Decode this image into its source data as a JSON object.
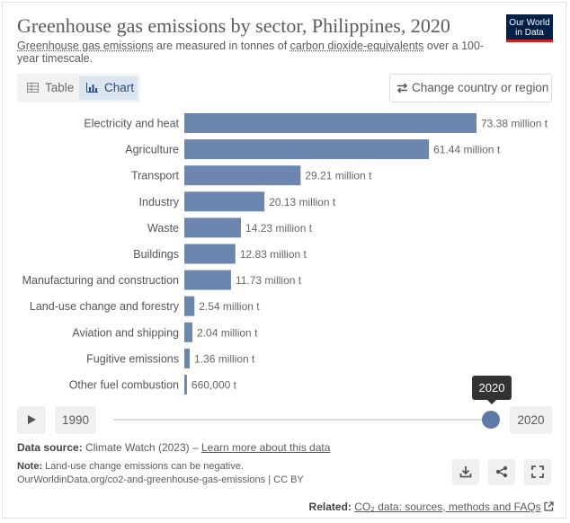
{
  "header": {
    "title": "Greenhouse gas emissions by sector, Philippines, 2020",
    "subtitle_link1": "Greenhouse gas emissions",
    "subtitle_mid": " are measured in tonnes of ",
    "subtitle_link2": "carbon dioxide-equivalents",
    "subtitle_end": " over a 100-year timescale.",
    "logo_line1": "Our World",
    "logo_line2": "in Data"
  },
  "tabs": {
    "table_label": "Table",
    "chart_label": "Chart",
    "selected": "Chart"
  },
  "change_button_label": "Change country or region",
  "colors": {
    "bar": "#6d86b0",
    "accent": "#5f79a6",
    "logo_bg": "#002147",
    "logo_stripe": "#ce261e"
  },
  "chart_data": {
    "type": "bar",
    "orientation": "horizontal",
    "unit": "million t",
    "categories": [
      "Electricity and heat",
      "Agriculture",
      "Transport",
      "Industry",
      "Waste",
      "Buildings",
      "Manufacturing and construction",
      "Land-use change and forestry",
      "Aviation and shipping",
      "Fugitive emissions",
      "Other fuel combustion"
    ],
    "values": [
      73.38,
      61.44,
      29.21,
      20.13,
      14.23,
      12.83,
      11.73,
      2.54,
      2.04,
      1.36,
      0.66
    ],
    "value_labels": [
      "73.38 million t",
      "61.44 million t",
      "29.21 million t",
      "20.13 million t",
      "14.23 million t",
      "12.83 million t",
      "11.73 million t",
      "2.54 million t",
      "2.04 million t",
      "1.36 million t",
      "660,000 t"
    ],
    "title": "Greenhouse gas emissions by sector, Philippines, 2020",
    "xlim": [
      0,
      73.38
    ]
  },
  "timeline": {
    "start_year": "1990",
    "end_year": "2020",
    "current_year": "2020",
    "position_fraction": 1.0
  },
  "footer": {
    "source_label": "Data source:",
    "source_text": " Climate Watch (2023) – ",
    "source_link": "Learn more about this data",
    "note_label": "Note:",
    "note_text": " Land-use change emissions can be negative.",
    "url_text": "OurWorldinData.org/co2-and-greenhouse-gas-emissions | CC BY",
    "related_label": "Related:",
    "related_link": "CO₂ data: sources, methods and FAQs"
  },
  "icons": {
    "download": "download-icon",
    "share": "share-icon",
    "fullscreen": "fullscreen-icon",
    "external": "external-link-icon"
  }
}
